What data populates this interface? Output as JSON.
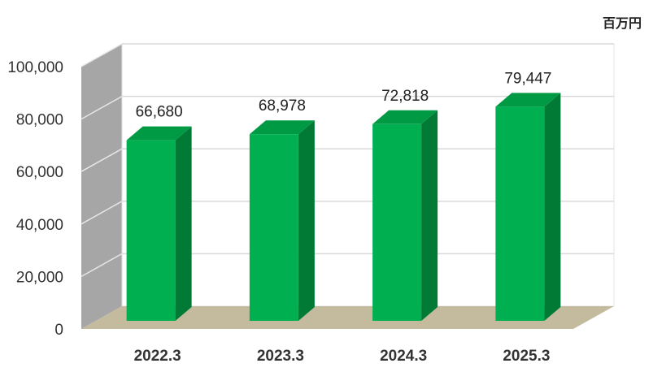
{
  "chart_data": {
    "type": "bar",
    "categories": [
      "2022.3",
      "2023.3",
      "2024.3",
      "2025.3"
    ],
    "values": [
      66680,
      68978,
      72818,
      79447
    ],
    "data_labels": [
      "66,680",
      "68,978",
      "72,818",
      "79,447"
    ],
    "y_ticks": [
      "0",
      "20,000",
      "40,000",
      "60,000",
      "80,000",
      "100,000"
    ],
    "ylim": [
      0,
      100000
    ],
    "unit_label": "百万円",
    "grid": true,
    "style": "3d-column",
    "colors": {
      "bar_front": "#00b050",
      "bar_side": "#007a34",
      "bar_top": "#009a44",
      "back_wall": "#ffffff",
      "side_wall": "#a6a6a6",
      "floor": "#c4bb9e",
      "gridline": "#d9d9d9"
    }
  }
}
